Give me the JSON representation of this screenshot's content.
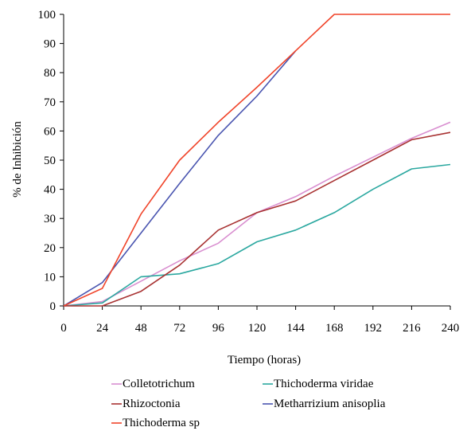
{
  "chart_data": {
    "type": "line",
    "xlabel": "Tiempo (horas)",
    "ylabel": "% de Inhibición",
    "x": [
      0,
      24,
      48,
      72,
      96,
      120,
      144,
      168,
      192,
      216,
      240
    ],
    "x_ticks": [
      "0",
      "24",
      "48",
      "72",
      "96",
      "120",
      "144",
      "168",
      "192",
      "216",
      "240"
    ],
    "y_ticks": [
      "0",
      "10",
      "20",
      "30",
      "40",
      "50",
      "60",
      "70",
      "80",
      "90",
      "100"
    ],
    "xlim": [
      0,
      240
    ],
    "ylim": [
      0,
      100
    ],
    "grid": false,
    "legend_position": "bottom",
    "series": [
      {
        "name": "Colletotrichum",
        "color": "#d98fd0",
        "values": [
          0,
          1.5,
          8.5,
          15.5,
          21.5,
          32,
          37.5,
          44.5,
          51,
          57.5,
          63
        ]
      },
      {
        "name": "Thichoderma viridae",
        "color": "#2ba8a0",
        "values": [
          0,
          1,
          10,
          11,
          14.5,
          22,
          26,
          32,
          40,
          47,
          48.5
        ]
      },
      {
        "name": "Rhizoctonia",
        "color": "#a83232",
        "values": [
          0,
          0,
          5,
          14,
          26,
          32,
          36,
          43,
          50,
          57,
          59.5
        ]
      },
      {
        "name": "Metharrizium anisoplia",
        "color": "#4a55b0",
        "values": [
          0,
          8,
          25,
          42,
          58.5,
          72,
          87.5,
          null,
          null,
          null,
          null
        ]
      },
      {
        "name": "Thichoderma sp",
        "color": "#f0442a",
        "values": [
          0,
          6,
          31.5,
          50,
          63,
          75,
          87.5,
          100,
          100,
          100,
          100
        ]
      }
    ]
  }
}
